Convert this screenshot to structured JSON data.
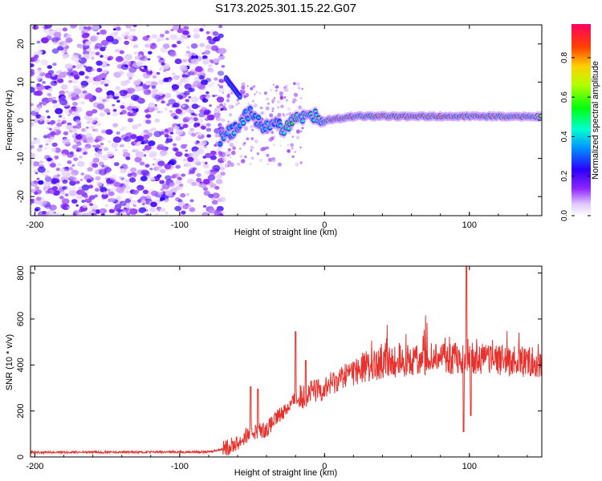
{
  "title": "S173.2025.301.15.22.G07",
  "chart_data": [
    {
      "type": "heatmap",
      "xlabel": "Height of straight line (km)",
      "ylabel": "Frequency (Hz)",
      "xlim": [
        -203,
        150
      ],
      "ylim": [
        -25,
        25
      ],
      "xticks": [
        -200,
        -100,
        0,
        100
      ],
      "yticks": [
        20,
        10,
        0,
        -10,
        -20
      ],
      "colorbar": {
        "label": "Normalized spectral amplitude",
        "range": [
          0.0,
          0.97
        ],
        "ticks": [
          0.0,
          0.2,
          0.4,
          0.6,
          0.8
        ]
      },
      "noise_region_x": [
        -203,
        -70
      ],
      "signal_path": [
        {
          "x": -72,
          "f": -5
        },
        {
          "x": -66,
          "f": -3
        },
        {
          "x": -60,
          "f": -2
        },
        {
          "x": -52,
          "f": 2
        },
        {
          "x": -46,
          "f": 0
        },
        {
          "x": -40,
          "f": -2
        },
        {
          "x": -34,
          "f": -1
        },
        {
          "x": -28,
          "f": -2
        },
        {
          "x": -20,
          "f": 1
        },
        {
          "x": -12,
          "f": 0
        },
        {
          "x": -6,
          "f": 1
        },
        {
          "x": 0,
          "f": 0
        },
        {
          "x": 20,
          "f": 1
        },
        {
          "x": 60,
          "f": 1
        },
        {
          "x": 90,
          "f": 1
        },
        {
          "x": 100,
          "f": 1
        },
        {
          "x": 150,
          "f": 1
        }
      ],
      "secondary_path": [
        {
          "x": -68,
          "f": 11
        },
        {
          "x": -64,
          "f": 9
        },
        {
          "x": -58,
          "f": 6
        }
      ]
    },
    {
      "type": "line",
      "xlabel": "Height of straight line (km)",
      "ylabel": "SNR (10 * v/v)",
      "xlim": [
        -203,
        150
      ],
      "ylim": [
        0,
        830
      ],
      "xticks": [
        -200,
        -100,
        0,
        100
      ],
      "yticks": [
        0,
        200,
        400,
        600,
        800
      ],
      "color": "#e8312c",
      "trend": [
        {
          "x": -203,
          "v": 20
        },
        {
          "x": -80,
          "v": 22
        },
        {
          "x": -70,
          "v": 35
        },
        {
          "x": -60,
          "v": 60
        },
        {
          "x": -50,
          "v": 110
        },
        {
          "x": -40,
          "v": 120
        },
        {
          "x": -30,
          "v": 190
        },
        {
          "x": -20,
          "v": 250
        },
        {
          "x": -10,
          "v": 280
        },
        {
          "x": 0,
          "v": 300
        },
        {
          "x": 10,
          "v": 340
        },
        {
          "x": 20,
          "v": 380
        },
        {
          "x": 40,
          "v": 410
        },
        {
          "x": 60,
          "v": 420
        },
        {
          "x": 80,
          "v": 430
        },
        {
          "x": 100,
          "v": 430
        },
        {
          "x": 120,
          "v": 420
        },
        {
          "x": 150,
          "v": 415
        }
      ],
      "spikes": [
        {
          "x": -51,
          "v": 305
        },
        {
          "x": -46,
          "v": 295
        },
        {
          "x": -20,
          "v": 545
        },
        {
          "x": -13,
          "v": 420
        },
        {
          "x": 96,
          "v": 110
        },
        {
          "x": 98,
          "v": 830
        },
        {
          "x": 101,
          "v": 180
        }
      ]
    }
  ]
}
